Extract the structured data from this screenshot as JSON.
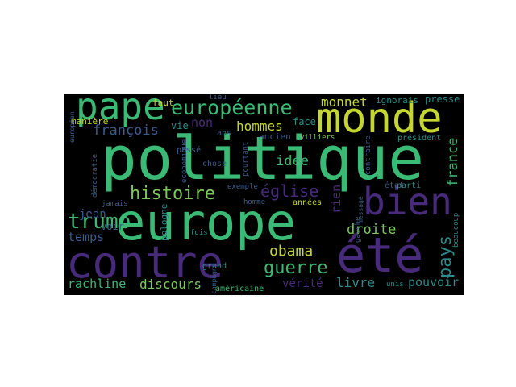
{
  "words": {
    "politique": "politique",
    "europe": "europe",
    "contre": "contre",
    "ete": "été",
    "monde": "monde",
    "pape": "pape",
    "bien": "bien",
    "europeenne": "européenne",
    "histoire": "histoire",
    "eglise": "église",
    "guerre": "guerre",
    "obama": "obama",
    "trump": "trump",
    "pays": "pays",
    "francois": "françois",
    "monnet": "monnet",
    "hommes": "hommes",
    "idee": "idée",
    "droite": "droite",
    "france": "france",
    "rachline": "rachline",
    "discours": "discours",
    "verite": "vérité",
    "livre": "livre",
    "pouvoir": "pouvoir",
    "temps": "temps",
    "jean": "jean",
    "voir": "voir",
    "rien": "rien",
    "non": "non",
    "vie": "vie",
    "faut": "faut",
    "maniere": "manière",
    "ignorais": "ignorais",
    "presse": "presse",
    "face": "face",
    "ancien": "ancien",
    "villiers": "villiers",
    "president": "président",
    "passe": "passé",
    "chose": "chose",
    "ans": "ans",
    "lieu": "lieu",
    "etat": "état",
    "parti": "parti",
    "annees": "années",
    "homme": "homme",
    "pologne": "pologne",
    "fois": "fois",
    "grand": "grand",
    "americaine": "américaine",
    "exemple": "exemple",
    "unis": "unis",
    "campagne": "campagne",
    "jamais": "jamais",
    "pourtant": "pourtant",
    "contraire": "contraire",
    "gauche": "gauche",
    "democratie": "démocratie",
    "economique": "économique",
    "beaucoup": "beaucoup",
    "message": "message",
    "europeen": "européen"
  }
}
